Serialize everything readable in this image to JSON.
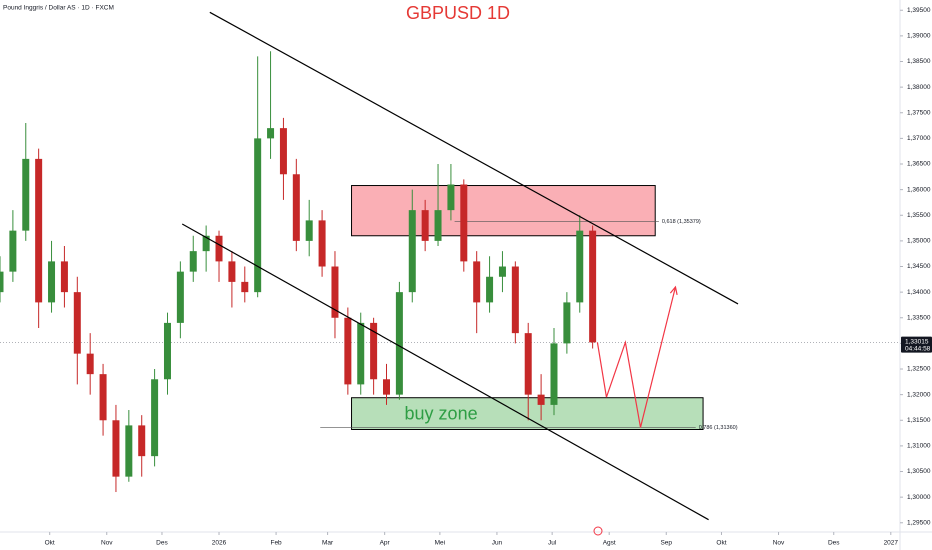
{
  "chart_data": {
    "type": "candlestick",
    "title": "GBPUSD 1D",
    "subtitle": "Pound Inggris / Dollar AS · 1D · FXCM",
    "x": [
      -27,
      -20,
      -13,
      -6,
      1,
      8,
      15,
      22,
      29,
      36,
      43,
      50,
      57,
      64,
      71,
      78,
      85,
      92,
      99,
      106,
      113,
      120,
      127,
      134,
      141,
      148,
      155,
      162,
      169,
      176,
      183,
      190,
      197,
      204,
      211,
      218,
      225,
      232,
      239,
      246,
      253,
      260,
      267,
      274,
      281,
      288,
      295
    ],
    "open": [
      1.34,
      1.344,
      1.352,
      1.366,
      1.338,
      1.346,
      1.34,
      1.328,
      1.324,
      1.315,
      1.304,
      1.314,
      1.308,
      1.323,
      1.334,
      1.344,
      1.348,
      1.351,
      1.346,
      1.342,
      1.34,
      1.37,
      1.372,
      1.363,
      1.35,
      1.354,
      1.345,
      1.335,
      1.322,
      1.334,
      1.323,
      1.32,
      1.34,
      1.356,
      1.35,
      1.356,
      1.361,
      1.346,
      1.338,
      1.343,
      1.345,
      1.332,
      1.32,
      1.318,
      1.33,
      1.338,
      1.352
    ],
    "high": [
      1.347,
      1.356,
      1.373,
      1.368,
      1.35,
      1.349,
      1.343,
      1.332,
      1.326,
      1.318,
      1.317,
      1.316,
      1.325,
      1.336,
      1.346,
      1.351,
      1.353,
      1.352,
      1.348,
      1.345,
      1.386,
      1.387,
      1.374,
      1.366,
      1.358,
      1.356,
      1.348,
      1.337,
      1.336,
      1.335,
      1.326,
      1.342,
      1.36,
      1.358,
      1.365,
      1.365,
      1.362,
      1.348,
      1.347,
      1.348,
      1.346,
      1.334,
      1.324,
      1.333,
      1.34,
      1.355,
      1.353
    ],
    "low": [
      1.338,
      1.342,
      1.35,
      1.333,
      1.336,
      1.337,
      1.322,
      1.32,
      1.312,
      1.301,
      1.303,
      1.304,
      1.306,
      1.32,
      1.331,
      1.342,
      1.344,
      1.342,
      1.337,
      1.338,
      1.339,
      1.366,
      1.358,
      1.348,
      1.347,
      1.343,
      1.331,
      1.32,
      1.32,
      1.32,
      1.318,
      1.319,
      1.338,
      1.348,
      1.349,
      1.354,
      1.344,
      1.332,
      1.336,
      1.34,
      1.33,
      1.315,
      1.315,
      1.316,
      1.328,
      1.336,
      1.329
    ],
    "close": [
      1.344,
      1.352,
      1.366,
      1.338,
      1.346,
      1.34,
      1.328,
      1.324,
      1.315,
      1.304,
      1.314,
      1.308,
      1.323,
      1.334,
      1.344,
      1.348,
      1.351,
      1.346,
      1.342,
      1.34,
      1.37,
      1.372,
      1.363,
      1.35,
      1.354,
      1.345,
      1.335,
      1.322,
      1.334,
      1.323,
      1.32,
      1.34,
      1.356,
      1.35,
      1.356,
      1.361,
      1.346,
      1.338,
      1.343,
      1.345,
      1.332,
      1.32,
      1.318,
      1.33,
      1.338,
      1.352,
      1.3302
    ],
    "up_color": "#388e3c",
    "down_color": "#c62828",
    "xlim": [
      -27,
      462
    ],
    "ylim": [
      1.2932,
      1.397
    ],
    "xticks": [
      {
        "value": 0,
        "label": "Okt"
      },
      {
        "value": 31,
        "label": "Nov"
      },
      {
        "value": 61,
        "label": "Des"
      },
      {
        "value": 92,
        "label": "2026"
      },
      {
        "value": 123,
        "label": "Feb"
      },
      {
        "value": 151,
        "label": "Mar"
      },
      {
        "value": 182,
        "label": "Apr"
      },
      {
        "value": 212,
        "label": "Mei"
      },
      {
        "value": 243,
        "label": "Jun"
      },
      {
        "value": 273,
        "label": "Jul"
      },
      {
        "value": 304,
        "label": "Agst"
      },
      {
        "value": 335,
        "label": "Sep"
      },
      {
        "value": 365,
        "label": "Okt"
      },
      {
        "value": 396,
        "label": "Nov"
      },
      {
        "value": 426,
        "label": "Des"
      },
      {
        "value": 457,
        "label": "2027"
      }
    ],
    "yticks": [
      {
        "value": 1.295,
        "label": "1,29500"
      },
      {
        "value": 1.3,
        "label": "1,30000"
      },
      {
        "value": 1.305,
        "label": "1,30500"
      },
      {
        "value": 1.31,
        "label": "1,31000"
      },
      {
        "value": 1.315,
        "label": "1,31500"
      },
      {
        "value": 1.32,
        "label": "1,32000"
      },
      {
        "value": 1.325,
        "label": "1,32500"
      },
      {
        "value": 1.33,
        "label": "1,33000"
      },
      {
        "value": 1.335,
        "label": "1,33500"
      },
      {
        "value": 1.34,
        "label": "1,34000"
      },
      {
        "value": 1.345,
        "label": "1,34500"
      },
      {
        "value": 1.35,
        "label": "1,35000"
      },
      {
        "value": 1.355,
        "label": "1,35500"
      },
      {
        "value": 1.36,
        "label": "1,36000"
      },
      {
        "value": 1.365,
        "label": "1,36500"
      },
      {
        "value": 1.37,
        "label": "1,37000"
      },
      {
        "value": 1.375,
        "label": "1,37500"
      },
      {
        "value": 1.38,
        "label": "1,38000"
      },
      {
        "value": 1.385,
        "label": "1,38500"
      },
      {
        "value": 1.39,
        "label": "1,39000"
      },
      {
        "value": 1.395,
        "label": "1,39500"
      }
    ],
    "grid": false,
    "last_price": {
      "value": 1.33015,
      "label": "1,33015"
    },
    "countdown": "04:44:58",
    "zones": [
      {
        "x": [
          164,
          329
        ],
        "y": [
          1.351,
          1.3608
        ],
        "color": "#f23645"
      },
      {
        "x": [
          164,
          355
        ],
        "y": [
          1.3132,
          1.3194
        ],
        "color": "#4caf50",
        "label": "buy zone"
      }
    ],
    "fib_levels": [
      {
        "label": "0,618 (1,35379)",
        "value": 1.35379,
        "x": [
          220,
          331
        ]
      },
      {
        "label": "0.786 (1,31360)",
        "value": 1.3136,
        "x": [
          147,
          351
        ]
      }
    ],
    "trendlines": [
      {
        "x": [
          87,
          374
        ],
        "y": [
          1.3946,
          1.3377
        ]
      },
      {
        "x": [
          72,
          358
        ],
        "y": [
          1.3533,
          1.2956
        ]
      }
    ],
    "projection": {
      "x": [
        297.6,
        302.5,
        312.8,
        321,
        340
      ],
      "y": [
        1.3302,
        1.3195,
        1.3302,
        1.3136,
        1.341
      ],
      "color": "#f23645"
    }
  }
}
